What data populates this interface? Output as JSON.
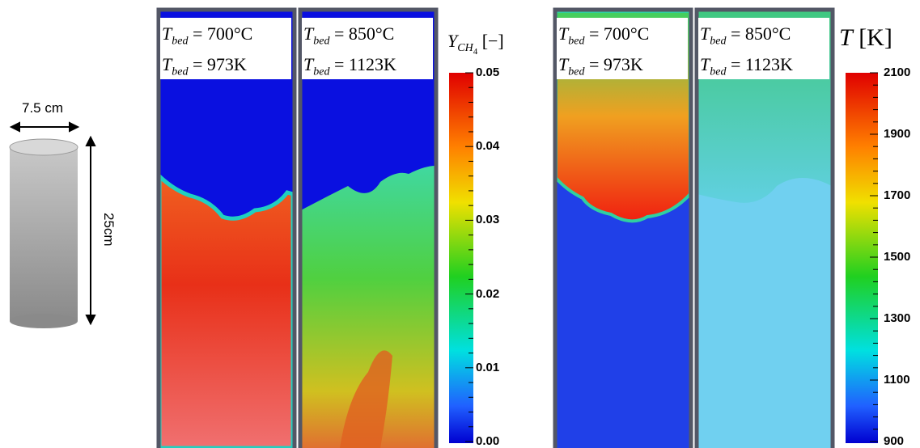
{
  "schematic": {
    "width_label": "7.5 cm",
    "height_label": "25cm"
  },
  "panels": [
    {
      "labels": [
        {
          "symbol": "T",
          "subscript": "bed",
          "value": "= 700°C"
        },
        {
          "symbol": "T",
          "subscript": "bed",
          "value": "= 973K"
        }
      ]
    },
    {
      "labels": [
        {
          "symbol": "T",
          "subscript": "bed",
          "value": "= 850°C"
        },
        {
          "symbol": "T",
          "subscript": "bed",
          "value": "= 1123K"
        }
      ]
    },
    {
      "labels": [
        {
          "symbol": "T",
          "subscript": "bed",
          "value": "= 700°C"
        },
        {
          "symbol": "T",
          "subscript": "bed",
          "value": "= 973K"
        }
      ]
    },
    {
      "labels": [
        {
          "symbol": "T",
          "subscript": "bed",
          "value": "= 850°C"
        },
        {
          "symbol": "T",
          "subscript": "bed",
          "value": "= 1123K"
        }
      ]
    }
  ],
  "colorbars": [
    {
      "symbol": "Y",
      "subscript": "CH",
      "subsubscript": "4",
      "unit": "[−]",
      "ticks": [
        "0.05",
        "0.04",
        "0.03",
        "0.02",
        "0.01",
        "0.00"
      ]
    },
    {
      "symbol": "T",
      "unit": "[K]",
      "ticks": [
        "2100",
        "1900",
        "1700",
        "1500",
        "1300",
        "1100",
        "900"
      ]
    }
  ]
}
